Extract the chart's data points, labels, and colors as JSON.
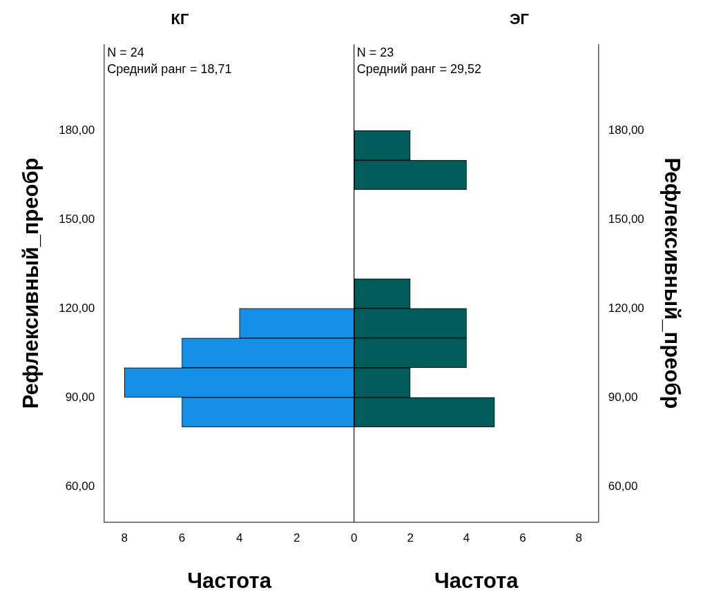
{
  "chart_data": [
    {
      "type": "histogram",
      "orientation": "horizontal",
      "title": "КГ",
      "xlabel": "Частота",
      "ylabel": "Рефлексивный_преобр",
      "bins": [
        80,
        90,
        100,
        110,
        120,
        130,
        140,
        150,
        160,
        170,
        180
      ],
      "values": [
        6,
        8,
        6,
        4,
        0,
        0,
        0,
        0,
        0,
        0
      ],
      "color": "#1590e6",
      "xlim": [
        8.7,
        0
      ],
      "xticks": [
        {
          "value": 0,
          "label": null
        },
        2,
        4,
        6,
        8
      ],
      "ylim": [
        48,
        209
      ],
      "yticks": [
        {
          "value": 60,
          "label": "60,00"
        },
        {
          "value": 90,
          "label": "90,00"
        },
        {
          "value": 120,
          "label": "120,00"
        },
        {
          "value": 150,
          "label": "150,00"
        },
        {
          "value": 180,
          "label": "180,00"
        }
      ],
      "annotations": [
        "N = 24",
        "Средний ранг = 18,71"
      ]
    },
    {
      "type": "histogram",
      "orientation": "horizontal",
      "title": "ЭГ",
      "xlabel": "Частота",
      "ylabel": "Рефлексивный_преобр",
      "bins": [
        80,
        90,
        100,
        110,
        120,
        130,
        140,
        150,
        160,
        170,
        180
      ],
      "values": [
        5,
        2,
        4,
        4,
        2,
        0,
        0,
        0,
        4,
        2
      ],
      "color": "#005c5a",
      "xlim": [
        0,
        8.7
      ],
      "xticks": [
        0,
        2,
        4,
        6,
        8
      ],
      "ylim": [
        48,
        209
      ],
      "yticks": [
        {
          "value": 60,
          "label": "60,00"
        },
        {
          "value": 90,
          "label": "90,00"
        },
        {
          "value": 120,
          "label": "120,00"
        },
        {
          "value": 150,
          "label": "150,00"
        },
        {
          "value": 180,
          "label": "180,00"
        }
      ],
      "annotations": [
        "N = 23",
        "Средний ранг = 29,52"
      ]
    }
  ]
}
